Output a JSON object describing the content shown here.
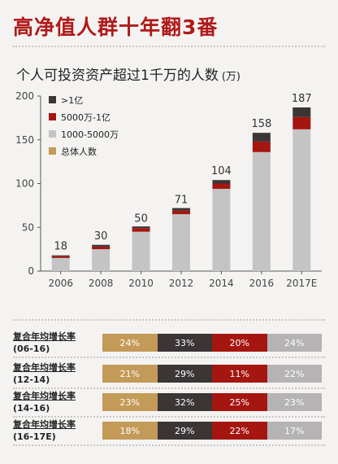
{
  "page": {
    "title": "高净值人群十年翻3番",
    "subtitle": "个人可投资资产超过1千万的人数",
    "unit": "(万)"
  },
  "colors": {
    "dark": "#3b3536",
    "red": "#a51611",
    "gray": "#c5c4c4",
    "gold": "#c39a58",
    "rate_gray": "#b5b3b3",
    "accent": "#b01a1a"
  },
  "legend": [
    {
      "label": ">1亿",
      "color": "#3b3536"
    },
    {
      "label": "5000万-1亿",
      "color": "#a51611"
    },
    {
      "label": "1000-5000万",
      "color": "#c5c4c4"
    },
    {
      "label": "总体人数",
      "color": "#c39a58"
    }
  ],
  "chart_data": {
    "type": "bar",
    "stacked": true,
    "categories": [
      "2006",
      "2008",
      "2010",
      "2012",
      "2014",
      "2016",
      "2017E"
    ],
    "series": [
      {
        "name": "1000-5000万",
        "values": [
          15,
          25,
          45,
          65,
          94,
          136,
          162
        ]
      },
      {
        "name": "5000万-1亿",
        "values": [
          2,
          3,
          4,
          4,
          6,
          12,
          14
        ]
      },
      {
        "name": ">1亿",
        "values": [
          1,
          2,
          2,
          3,
          4,
          10,
          11
        ]
      }
    ],
    "totals": [
      18,
      30,
      50,
      71,
      104,
      158,
      187
    ],
    "ylim": [
      0,
      200
    ],
    "yticks": [
      0,
      50,
      100,
      150,
      200
    ],
    "grid": false
  },
  "growth_rates": [
    {
      "label_line1": "复合年均增长率",
      "label_line2": "(06-16)",
      "values": [
        "24%",
        "33%",
        "20%",
        "24%"
      ]
    },
    {
      "label_line1": "复合年均增长率",
      "label_line2": "(12-14)",
      "values": [
        "21%",
        "29%",
        "11%",
        "22%"
      ]
    },
    {
      "label_line1": "复合年均增长率",
      "label_line2": "(14-16)",
      "values": [
        "23%",
        "32%",
        "25%",
        "23%"
      ]
    },
    {
      "label_line1": "复合年均增长率",
      "label_line2": "(16-17E)",
      "values": [
        "18%",
        "29%",
        "22%",
        "17%"
      ]
    }
  ]
}
